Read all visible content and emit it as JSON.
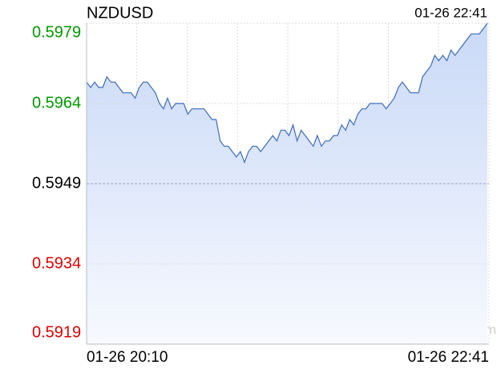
{
  "chart_data": {
    "type": "line",
    "title": "NZDUSD",
    "timestamp": "01-26 22:41",
    "watermark": "sina.com",
    "categories": [
      "01-26 20:10",
      null,
      null,
      null,
      null,
      null,
      null,
      null,
      null,
      null,
      null,
      null,
      null,
      null,
      null,
      null,
      null,
      null,
      null,
      null,
      null,
      null,
      null,
      null,
      null,
      null,
      null,
      null,
      null,
      null,
      null,
      null,
      null,
      null,
      null,
      null,
      null,
      null,
      null,
      null,
      null,
      null,
      null,
      null,
      null,
      null,
      null,
      null,
      null,
      null,
      null,
      null,
      null,
      null,
      null,
      null,
      null,
      null,
      null,
      null,
      null,
      null,
      null,
      null,
      null,
      null,
      null,
      null,
      null,
      null,
      null,
      null,
      null,
      null,
      null,
      null,
      null,
      null,
      null,
      null,
      null,
      null,
      null,
      null,
      null,
      null,
      null,
      null,
      null,
      null,
      null,
      null,
      null,
      null,
      null,
      null,
      null,
      null,
      null,
      "01-26 22:41"
    ],
    "values": [
      0.5968,
      0.5967,
      0.5968,
      0.5967,
      0.5967,
      0.5969,
      0.5968,
      0.5968,
      0.5967,
      0.5966,
      0.5966,
      0.5966,
      0.5965,
      0.5967,
      0.5968,
      0.5968,
      0.5967,
      0.5966,
      0.5964,
      0.5963,
      0.5965,
      0.5963,
      0.5964,
      0.5964,
      0.5964,
      0.5962,
      0.5963,
      0.5963,
      0.5963,
      0.5963,
      0.5962,
      0.5961,
      0.5961,
      0.5957,
      0.5956,
      0.5956,
      0.5955,
      0.5954,
      0.5955,
      0.5953,
      0.5955,
      0.5956,
      0.5956,
      0.5955,
      0.5956,
      0.5957,
      0.5958,
      0.5957,
      0.5959,
      0.5959,
      0.5958,
      0.596,
      0.5957,
      0.5959,
      0.5958,
      0.5957,
      0.5956,
      0.5958,
      0.5956,
      0.5957,
      0.5957,
      0.5958,
      0.5958,
      0.596,
      0.5959,
      0.5961,
      0.596,
      0.5962,
      0.5963,
      0.5963,
      0.5964,
      0.5964,
      0.5964,
      0.5964,
      0.5963,
      0.5964,
      0.5965,
      0.5967,
      0.5968,
      0.5967,
      0.5966,
      0.5966,
      0.5966,
      0.5969,
      0.597,
      0.5971,
      0.5973,
      0.5972,
      0.5973,
      0.5972,
      0.5974,
      0.5973,
      0.5974,
      0.5975,
      0.5976,
      0.5977,
      0.5977,
      0.5977,
      0.5978,
      0.5979
    ],
    "color": "#3d6cb9",
    "up_color": "#009900",
    "down_color": "#dd0000",
    "reference": 0.5949,
    "ylim": [
      0.5919,
      0.5979
    ],
    "yticks": [
      0.5979,
      0.5964,
      0.5949,
      0.5934,
      0.5919
    ],
    "grid": true
  }
}
